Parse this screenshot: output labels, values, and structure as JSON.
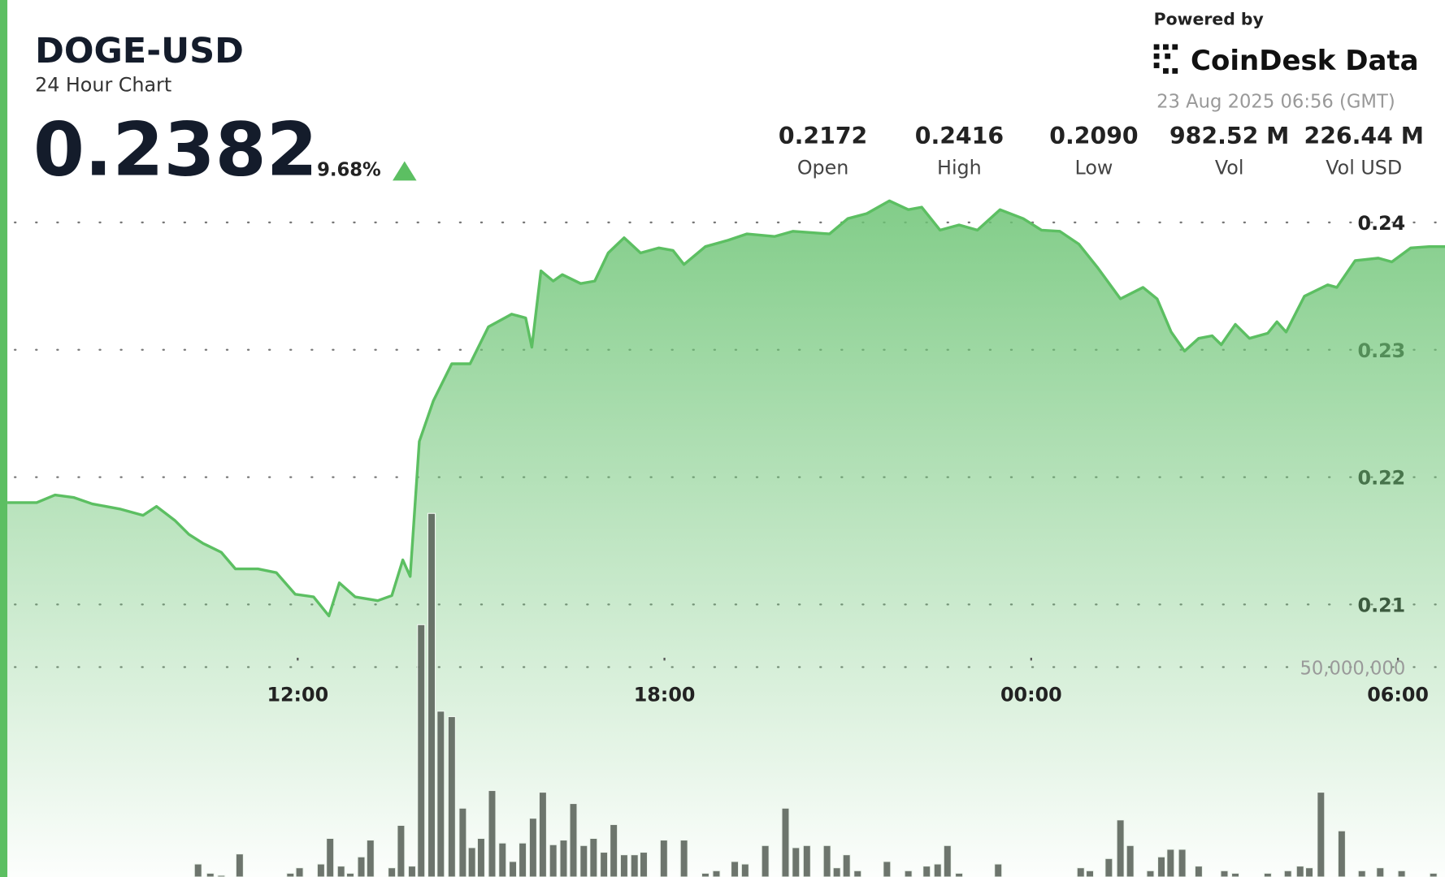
{
  "chart_data": {
    "type": "area",
    "title": "DOGE-USD",
    "subtitle": "24 Hour Chart",
    "last_price": "0.2382",
    "change": "9.68%",
    "stats": [
      {
        "value": "0.2172",
        "label": "Open"
      },
      {
        "value": "0.2416",
        "label": "High"
      },
      {
        "value": "0.2090",
        "label": "Low"
      },
      {
        "value": "982.52 M",
        "label": "Vol"
      },
      {
        "value": "226.44 M",
        "label": "Vol USD"
      }
    ],
    "powered_by": "Powered by",
    "brand": "CoinDesk Data",
    "timestamp": "23 Aug 2025 06:56 (GMT)",
    "color": "#5cbf62",
    "x": [
      7.25,
      7.73,
      8.03,
      8.34,
      8.64,
      9.09,
      9.47,
      9.69,
      9.99,
      10.22,
      10.45,
      10.75,
      10.98,
      11.35,
      11.65,
      11.96,
      12.26,
      12.51,
      12.68,
      12.94,
      13.31,
      13.54,
      13.72,
      13.84,
      13.99,
      14.22,
      14.52,
      14.82,
      15.12,
      15.5,
      15.73,
      15.83,
      15.98,
      16.18,
      16.33,
      16.63,
      16.86,
      17.08,
      17.34,
      17.61,
      17.91,
      18.14,
      18.32,
      18.67,
      19.04,
      19.35,
      19.8,
      20.1,
      20.7,
      21.0,
      21.31,
      21.68,
      21.99,
      22.21,
      22.51,
      22.82,
      23.12,
      23.49,
      23.87,
      24.17,
      24.47,
      24.78,
      25.08,
      25.46,
      25.83,
      26.06,
      26.29,
      26.51,
      26.74,
      26.96,
      27.11,
      27.34,
      27.57,
      27.87,
      28.02,
      28.17,
      28.47,
      28.85,
      29.0,
      29.3,
      29.68,
      29.9,
      30.21,
      30.51,
      30.77
    ],
    "values": [
      0.218,
      0.218,
      0.2186,
      0.2184,
      0.2179,
      0.2175,
      0.217,
      0.2177,
      0.2166,
      0.2155,
      0.2148,
      0.2141,
      0.2128,
      0.2128,
      0.2125,
      0.2108,
      0.2106,
      0.2091,
      0.2117,
      0.2106,
      0.2103,
      0.2107,
      0.2135,
      0.2122,
      0.2228,
      0.226,
      0.2289,
      0.2289,
      0.2318,
      0.2328,
      0.2325,
      0.2302,
      0.2362,
      0.2354,
      0.2359,
      0.2352,
      0.2354,
      0.2376,
      0.2388,
      0.2376,
      0.238,
      0.2378,
      0.2367,
      0.2381,
      0.2386,
      0.2391,
      0.2389,
      0.2393,
      0.2391,
      0.2403,
      0.2407,
      0.2417,
      0.241,
      0.2412,
      0.2394,
      0.2398,
      0.2394,
      0.241,
      0.2403,
      0.2394,
      0.2393,
      0.2383,
      0.2365,
      0.234,
      0.2349,
      0.234,
      0.2314,
      0.2299,
      0.2309,
      0.2311,
      0.2304,
      0.232,
      0.2309,
      0.2313,
      0.2322,
      0.2314,
      0.2342,
      0.2351,
      0.2349,
      0.237,
      0.2372,
      0.2369,
      0.238,
      0.2381,
      0.2381
    ],
    "xlim": [
      7.25,
      30.77
    ],
    "xticks": [
      {
        "value": 12,
        "label": "12:00"
      },
      {
        "value": 18,
        "label": "18:00"
      },
      {
        "value": 24,
        "label": "00:00"
      },
      {
        "value": 30,
        "label": "06:00"
      }
    ],
    "ylim": [
      0.1886,
      0.243
    ],
    "yticks": [
      0.21,
      0.22,
      0.23,
      0.24
    ],
    "grid": true,
    "volume": {
      "type": "bar",
      "axis": "y2",
      "color": "#5d665d",
      "x": [
        10.37,
        10.57,
        10.75,
        11.05,
        11.88,
        12.03,
        12.38,
        12.53,
        12.71,
        12.86,
        13.04,
        13.19,
        13.54,
        13.69,
        13.87,
        14.02,
        14.19,
        14.34,
        14.52,
        14.7,
        14.85,
        15.0,
        15.18,
        15.35,
        15.52,
        15.68,
        15.85,
        16.01,
        16.18,
        16.35,
        16.51,
        16.68,
        16.84,
        17.01,
        17.17,
        17.34,
        17.51,
        17.66,
        17.99,
        18.32,
        18.67,
        18.85,
        19.15,
        19.32,
        19.65,
        19.98,
        20.15,
        20.33,
        20.66,
        20.82,
        20.98,
        21.16,
        21.64,
        21.99,
        22.29,
        22.47,
        22.63,
        22.82,
        23.46,
        24.81,
        24.96,
        25.27,
        25.46,
        25.62,
        25.95,
        26.13,
        26.28,
        26.47,
        26.74,
        27.16,
        27.34,
        27.87,
        28.2,
        28.4,
        28.55,
        28.74,
        29.08,
        29.41,
        29.71,
        30.06,
        30.58
      ],
      "values": [
        3100000,
        900000,
        400000,
        5500000,
        900000,
        2200000,
        3100000,
        9200000,
        2600000,
        900000,
        4800000,
        8800000,
        2200000,
        12300000,
        2600000,
        60100000,
        86600000,
        39500000,
        38200000,
        16400000,
        7000000,
        9200000,
        20600000,
        8100000,
        3700000,
        8100000,
        14000000,
        20200000,
        7700000,
        8800000,
        17500000,
        7500000,
        9200000,
        5900000,
        12500000,
        5300000,
        5300000,
        5900000,
        8800000,
        8800000,
        900000,
        1500000,
        3700000,
        3100000,
        7500000,
        16400000,
        7000000,
        7500000,
        7500000,
        2200000,
        5300000,
        1500000,
        3700000,
        1500000,
        2600000,
        3100000,
        7500000,
        900000,
        3100000,
        2200000,
        1500000,
        4400000,
        13600000,
        7500000,
        1500000,
        4800000,
        6600000,
        6600000,
        2600000,
        1500000,
        900000,
        900000,
        1500000,
        2600000,
        2200000,
        20200000,
        11000000,
        1500000,
        2200000,
        1500000,
        900000
      ],
      "y2lim": [
        0,
        165000000
      ],
      "y2ticks": [
        {
          "value": 50000000,
          "label": "50,000,000"
        }
      ]
    }
  }
}
